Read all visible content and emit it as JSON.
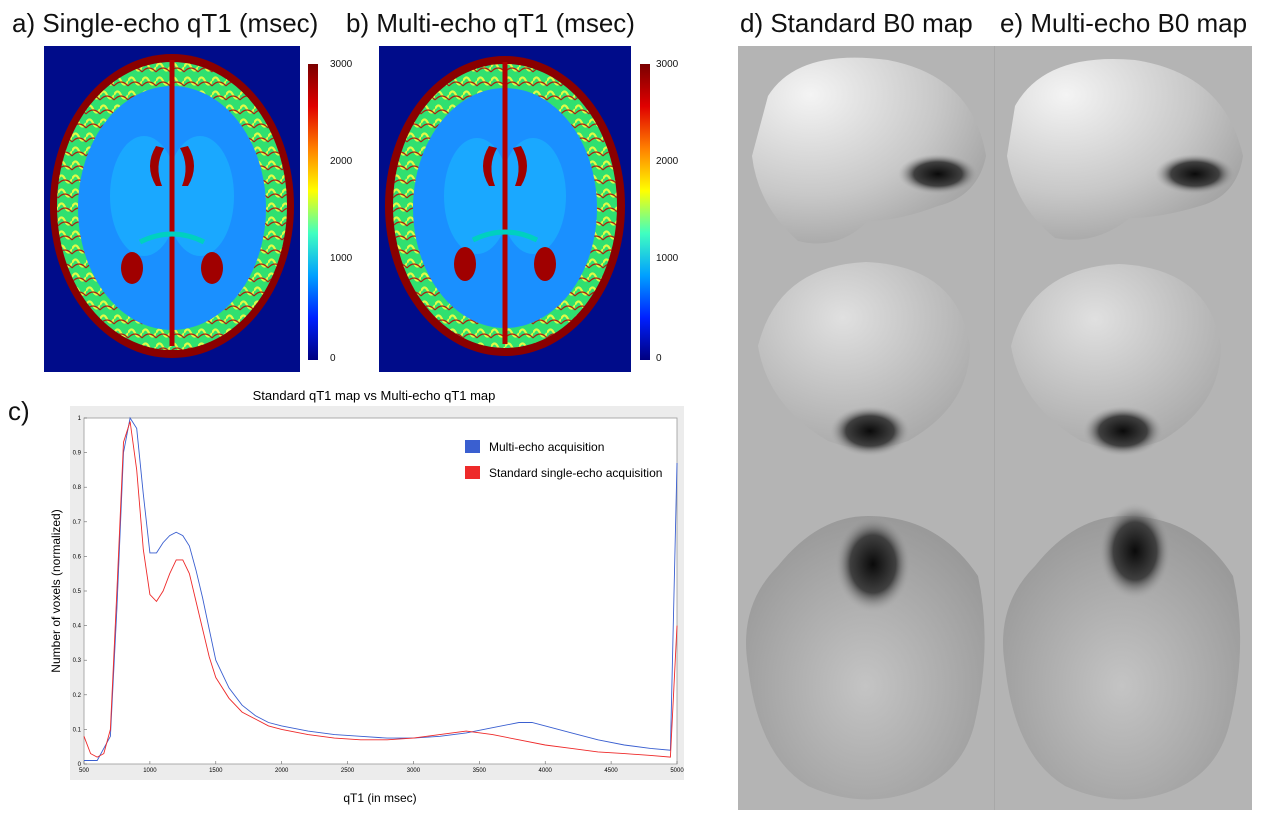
{
  "panels": {
    "a": {
      "title": "a) Single-echo qT1 (msec)"
    },
    "b": {
      "title": "b) Multi-echo qT1 (msec)"
    },
    "c": {
      "label": "c)"
    },
    "d": {
      "title": "d) Standard B0 map"
    },
    "e": {
      "title": "e) Multi-echo B0 map"
    }
  },
  "colorbar": {
    "ticks": [
      "3000",
      "2000",
      "1000",
      "0"
    ]
  },
  "colors": {
    "multi_echo": "#3a5fd0",
    "single_echo": "#ee2a2a",
    "mri_background": "#000c8a"
  },
  "chart_data": {
    "type": "line",
    "title": "Standard qT1 map vs Multi-echo qT1 map",
    "xlabel": "qT1 (in msec)",
    "ylabel": "Number of voxels (normalized)",
    "xlim": [
      500,
      5000
    ],
    "ylim": [
      0,
      1
    ],
    "xticks": [
      "500",
      "1000",
      "1500",
      "2000",
      "2500",
      "3000",
      "3500",
      "4000",
      "4500",
      "5000"
    ],
    "yticks": [
      "0",
      "0.1",
      "0.2",
      "0.3",
      "0.4",
      "0.5",
      "0.6",
      "0.7",
      "0.8",
      "0.9",
      "1"
    ],
    "grid": false,
    "legend_position": "top-right",
    "series": [
      {
        "name": "Multi-echo acquisition",
        "x": [
          500,
          600,
          700,
          750,
          800,
          850,
          900,
          950,
          1000,
          1050,
          1100,
          1150,
          1200,
          1250,
          1300,
          1350,
          1400,
          1450,
          1500,
          1600,
          1700,
          1800,
          1900,
          2000,
          2200,
          2400,
          2600,
          2800,
          3000,
          3200,
          3400,
          3600,
          3800,
          3900,
          4000,
          4200,
          4400,
          4600,
          4800,
          4950,
          5000
        ],
        "y": [
          0.01,
          0.01,
          0.08,
          0.45,
          0.9,
          1.0,
          0.97,
          0.78,
          0.61,
          0.61,
          0.64,
          0.66,
          0.67,
          0.66,
          0.63,
          0.56,
          0.48,
          0.39,
          0.3,
          0.22,
          0.17,
          0.14,
          0.12,
          0.11,
          0.095,
          0.085,
          0.08,
          0.075,
          0.075,
          0.08,
          0.09,
          0.105,
          0.12,
          0.12,
          0.11,
          0.09,
          0.07,
          0.055,
          0.045,
          0.04,
          0.87
        ]
      },
      {
        "name": "Standard single-echo acquisition",
        "x": [
          500,
          550,
          600,
          650,
          700,
          750,
          800,
          850,
          900,
          950,
          1000,
          1050,
          1100,
          1150,
          1200,
          1250,
          1300,
          1350,
          1400,
          1450,
          1500,
          1600,
          1700,
          1800,
          1900,
          2000,
          2200,
          2400,
          2600,
          2800,
          3000,
          3200,
          3400,
          3600,
          3800,
          4000,
          4200,
          4400,
          4600,
          4800,
          4950,
          5000
        ],
        "y": [
          0.08,
          0.03,
          0.02,
          0.03,
          0.1,
          0.5,
          0.93,
          0.99,
          0.85,
          0.62,
          0.49,
          0.47,
          0.5,
          0.55,
          0.59,
          0.59,
          0.55,
          0.47,
          0.39,
          0.31,
          0.25,
          0.19,
          0.15,
          0.13,
          0.11,
          0.1,
          0.085,
          0.075,
          0.07,
          0.07,
          0.075,
          0.085,
          0.095,
          0.085,
          0.07,
          0.055,
          0.045,
          0.035,
          0.03,
          0.025,
          0.02,
          0.4
        ]
      }
    ]
  }
}
